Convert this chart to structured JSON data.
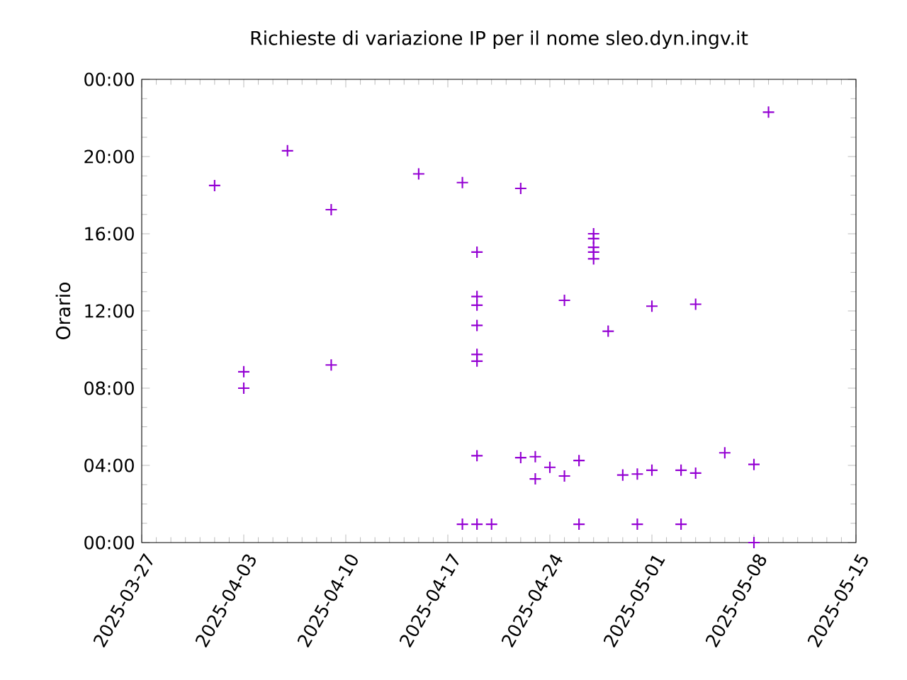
{
  "chart_data": {
    "type": "scatter",
    "title": "Richieste di variazione IP per il nome sleo.dyn.ingv.it",
    "ylabel": "Orario",
    "marker": "cross",
    "grid": false,
    "legend": false,
    "xlim": [
      "2025-03-27",
      "2025-05-15"
    ],
    "xticks": [
      "2025-03-27",
      "2025-04-03",
      "2025-04-10",
      "2025-04-17",
      "2025-04-24",
      "2025-05-01",
      "2025-05-08",
      "2025-05-15"
    ],
    "ylim": [
      0,
      24
    ],
    "yticks": [
      {
        "value": 0,
        "label": "00:00"
      },
      {
        "value": 4,
        "label": "04:00"
      },
      {
        "value": 8,
        "label": "08:00"
      },
      {
        "value": 12,
        "label": "12:00"
      },
      {
        "value": 16,
        "label": "16:00"
      },
      {
        "value": 20,
        "label": "20:00"
      },
      {
        "value": 24,
        "label": "00:00"
      }
    ],
    "series": [
      {
        "color": "#9400d3",
        "x": [
          "2025-04-01",
          "2025-04-03",
          "2025-04-03",
          "2025-04-06",
          "2025-04-09",
          "2025-04-09",
          "2025-04-15",
          "2025-04-18",
          "2025-04-18",
          "2025-04-19",
          "2025-04-19",
          "2025-04-19",
          "2025-04-19",
          "2025-04-19",
          "2025-04-19",
          "2025-04-19",
          "2025-04-19",
          "2025-04-20",
          "2025-04-22",
          "2025-04-22",
          "2025-04-23",
          "2025-04-23",
          "2025-04-24",
          "2025-04-25",
          "2025-04-25",
          "2025-04-26",
          "2025-04-26",
          "2025-04-27",
          "2025-04-27",
          "2025-04-27",
          "2025-04-27",
          "2025-04-27",
          "2025-04-28",
          "2025-04-29",
          "2025-04-30",
          "2025-04-30",
          "2025-05-01",
          "2025-05-01",
          "2025-05-03",
          "2025-05-03",
          "2025-05-04",
          "2025-05-04",
          "2025-05-06",
          "2025-05-08",
          "2025-05-08",
          "2025-05-09"
        ],
        "values": [
          18.5,
          8.85,
          8.0,
          20.3,
          17.25,
          9.2,
          19.1,
          18.65,
          0.95,
          15.05,
          12.75,
          12.3,
          11.25,
          9.75,
          9.4,
          4.5,
          0.95,
          0.95,
          18.35,
          4.4,
          4.45,
          3.3,
          3.9,
          12.55,
          3.45,
          4.25,
          0.95,
          16.0,
          15.75,
          15.3,
          15.05,
          14.7,
          10.95,
          3.5,
          3.55,
          0.95,
          12.25,
          3.75,
          3.75,
          0.95,
          12.35,
          3.6,
          4.65,
          4.05,
          0.0,
          22.3
        ]
      }
    ]
  }
}
